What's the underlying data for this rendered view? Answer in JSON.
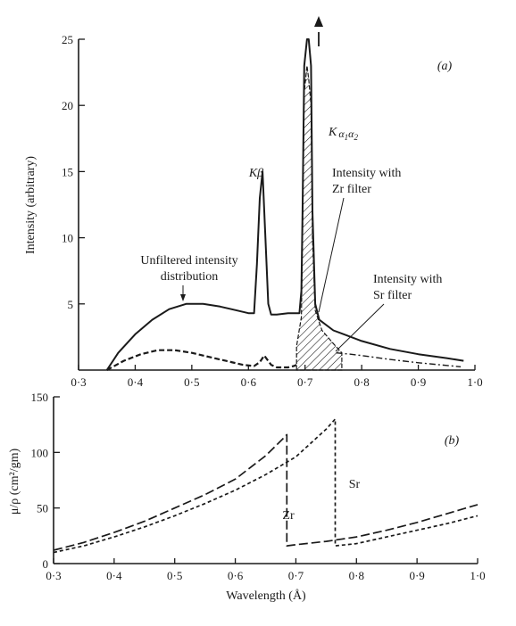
{
  "chart_data": [
    {
      "type": "line",
      "panel_label": "(a)",
      "xlabel": "",
      "ylabel": "Intensity (arbitrary)",
      "xlim": [
        0.3,
        1.0
      ],
      "ylim": [
        0,
        25
      ],
      "grid": false,
      "x_ticks": [
        {
          "v": 0.3,
          "label": "0·3"
        },
        {
          "v": 0.4,
          "label": "0·4"
        },
        {
          "v": 0.5,
          "label": "0·5"
        },
        {
          "v": 0.6,
          "label": "0·6"
        },
        {
          "v": 0.7,
          "label": "0·7"
        },
        {
          "v": 0.8,
          "label": "0·8"
        },
        {
          "v": 0.9,
          "label": "0·9"
        },
        {
          "v": 1.0,
          "label": "1·0"
        }
      ],
      "y_ticks": [
        {
          "v": 5,
          "label": "5"
        },
        {
          "v": 10,
          "label": "10"
        },
        {
          "v": 15,
          "label": "15"
        },
        {
          "v": 20,
          "label": "20"
        },
        {
          "v": 25,
          "label": "25"
        }
      ],
      "series": [
        {
          "style": "solid",
          "x": [
            0.35,
            0.37,
            0.4,
            0.43,
            0.46,
            0.49,
            0.52,
            0.55,
            0.58,
            0.6,
            0.61,
            0.615,
            0.62,
            0.625,
            0.63,
            0.635,
            0.64,
            0.65,
            0.67,
            0.69,
            0.6935,
            0.6955,
            0.6985,
            0.7035,
            0.7065,
            0.7105,
            0.713,
            0.718,
            0.725,
            0.75,
            0.8,
            0.85,
            0.9,
            0.95,
            0.98
          ],
          "y": [
            0,
            1.3,
            2.7,
            3.8,
            4.6,
            5.0,
            5.0,
            4.8,
            4.5,
            4.3,
            4.3,
            8,
            13,
            15,
            10,
            5,
            4.2,
            4.2,
            4.3,
            4.3,
            6,
            12,
            23,
            25,
            25,
            23,
            12,
            5,
            3.8,
            3.0,
            2.2,
            1.6,
            1.2,
            0.9,
            0.7
          ]
        },
        {
          "style": "dashed",
          "x": [
            0.35,
            0.38,
            0.41,
            0.44,
            0.47,
            0.5,
            0.53,
            0.56,
            0.59,
            0.61,
            0.62,
            0.628,
            0.64,
            0.65,
            0.66,
            0.67,
            0.68,
            0.685
          ],
          "y": [
            0,
            0.7,
            1.2,
            1.5,
            1.5,
            1.3,
            1.0,
            0.7,
            0.4,
            0.3,
            0.6,
            1.1,
            0.4,
            0.2,
            0.2,
            0.2,
            0.3,
            0.4
          ]
        },
        {
          "style": "dash-dot",
          "x": [
            0.755,
            0.78,
            0.8,
            0.85,
            0.9,
            0.95,
            0.975
          ],
          "y": [
            1.3,
            1.2,
            1.1,
            0.8,
            0.55,
            0.35,
            0.25
          ]
        }
      ],
      "filtered_peak": {
        "x": [
          0.685,
          0.685,
          0.6935,
          0.6955,
          0.6985,
          0.7035,
          0.7065,
          0.7105,
          0.713,
          0.718,
          0.73,
          0.75,
          0.765,
          0.765
        ],
        "y": [
          0,
          1.8,
          4,
          10,
          21,
          23,
          22,
          20,
          10,
          4.5,
          3.0,
          2.0,
          1.3,
          0
        ]
      },
      "annotations": [
        {
          "id": "kbeta",
          "text": "Kβ"
        },
        {
          "id": "unfiltered",
          "lines": [
            "Unfiltered intensity",
            "distribution"
          ]
        },
        {
          "id": "zr",
          "lines": [
            "Intensity with",
            "Zr filter"
          ]
        },
        {
          "id": "sr",
          "lines": [
            "Intensity with",
            "Sr filter"
          ]
        },
        {
          "id": "kalpha",
          "base": "K",
          "sub1": "α",
          "sub2": "1",
          "sub3": "α",
          "sub4": "2"
        }
      ]
    },
    {
      "type": "line",
      "panel_label": "(b)",
      "xlabel": "Wavelength (Å)",
      "ylabel": "μ/ρ (cm²/gm)",
      "xlim": [
        0.3,
        1.0
      ],
      "ylim": [
        0,
        150
      ],
      "grid": false,
      "x_ticks": [
        {
          "v": 0.3,
          "label": "0·3"
        },
        {
          "v": 0.4,
          "label": "0·4"
        },
        {
          "v": 0.5,
          "label": "0·5"
        },
        {
          "v": 0.6,
          "label": "0·6"
        },
        {
          "v": 0.7,
          "label": "0·7"
        },
        {
          "v": 0.8,
          "label": "0·8"
        },
        {
          "v": 0.9,
          "label": "0·9"
        },
        {
          "v": 1.0,
          "label": "1·0"
        }
      ],
      "y_ticks": [
        {
          "v": 0,
          "label": "0"
        },
        {
          "v": 50,
          "label": "50"
        },
        {
          "v": 100,
          "label": "100"
        },
        {
          "v": 150,
          "label": "150"
        }
      ],
      "series": [
        {
          "name": "Zr",
          "style": "long-dash",
          "x": [
            0.3,
            0.35,
            0.4,
            0.45,
            0.5,
            0.55,
            0.6,
            0.65,
            0.68,
            0.685,
            0.685,
            0.7,
            0.75,
            0.8,
            0.85,
            0.9,
            0.95,
            1.0
          ],
          "y": [
            12,
            19,
            28,
            38,
            50,
            62,
            76,
            97,
            113,
            116,
            16,
            17,
            20,
            24,
            30,
            37,
            45,
            53
          ]
        },
        {
          "name": "Sr",
          "style": "short-dash",
          "x": [
            0.3,
            0.35,
            0.4,
            0.45,
            0.5,
            0.55,
            0.6,
            0.65,
            0.7,
            0.75,
            0.765,
            0.765,
            0.8,
            0.85,
            0.9,
            0.95,
            1.0
          ],
          "y": [
            10,
            16,
            24,
            33,
            43,
            54,
            66,
            80,
            96,
            121,
            130,
            16,
            18,
            24,
            30,
            36,
            43
          ]
        }
      ],
      "annotations": [
        {
          "id": "zr",
          "text": "Zr"
        },
        {
          "id": "sr",
          "text": "Sr"
        }
      ]
    }
  ]
}
